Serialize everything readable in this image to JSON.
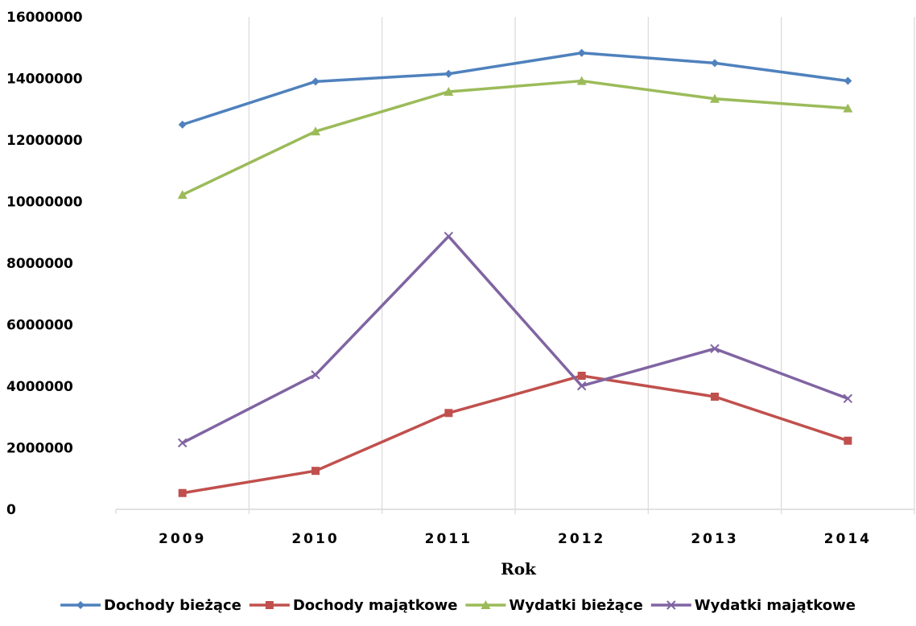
{
  "chart_data": {
    "type": "line",
    "title": "",
    "xlabel": "Rok",
    "ylabel": "",
    "categories": [
      "2009",
      "2010",
      "2011",
      "2012",
      "2013",
      "2014"
    ],
    "ylim": [
      0,
      16000000
    ],
    "yticks": [
      "0",
      "2000000",
      "4000000",
      "6000000",
      "8000000",
      "10000000",
      "12000000",
      "14000000",
      "16000000"
    ],
    "grid": "vertical",
    "legend_position": "bottom",
    "series": [
      {
        "name": "Dochody bieżące",
        "color": "#4f81bd",
        "marker": "diamond",
        "values": [
          12500000,
          13900000,
          14150000,
          14830000,
          14500000,
          13920000
        ]
      },
      {
        "name": "Dochody majątkowe",
        "color": "#c0504d",
        "marker": "square",
        "values": [
          530000,
          1250000,
          3130000,
          4340000,
          3660000,
          2230000
        ]
      },
      {
        "name": "Wydatki bieżące",
        "color": "#9bbb59",
        "marker": "triangle",
        "values": [
          10220000,
          12280000,
          13570000,
          13920000,
          13340000,
          13030000
        ]
      },
      {
        "name": "Wydatki majątkowe",
        "color": "#8064a2",
        "marker": "x",
        "values": [
          2160000,
          4370000,
          8870000,
          4010000,
          5220000,
          3600000
        ]
      }
    ]
  }
}
